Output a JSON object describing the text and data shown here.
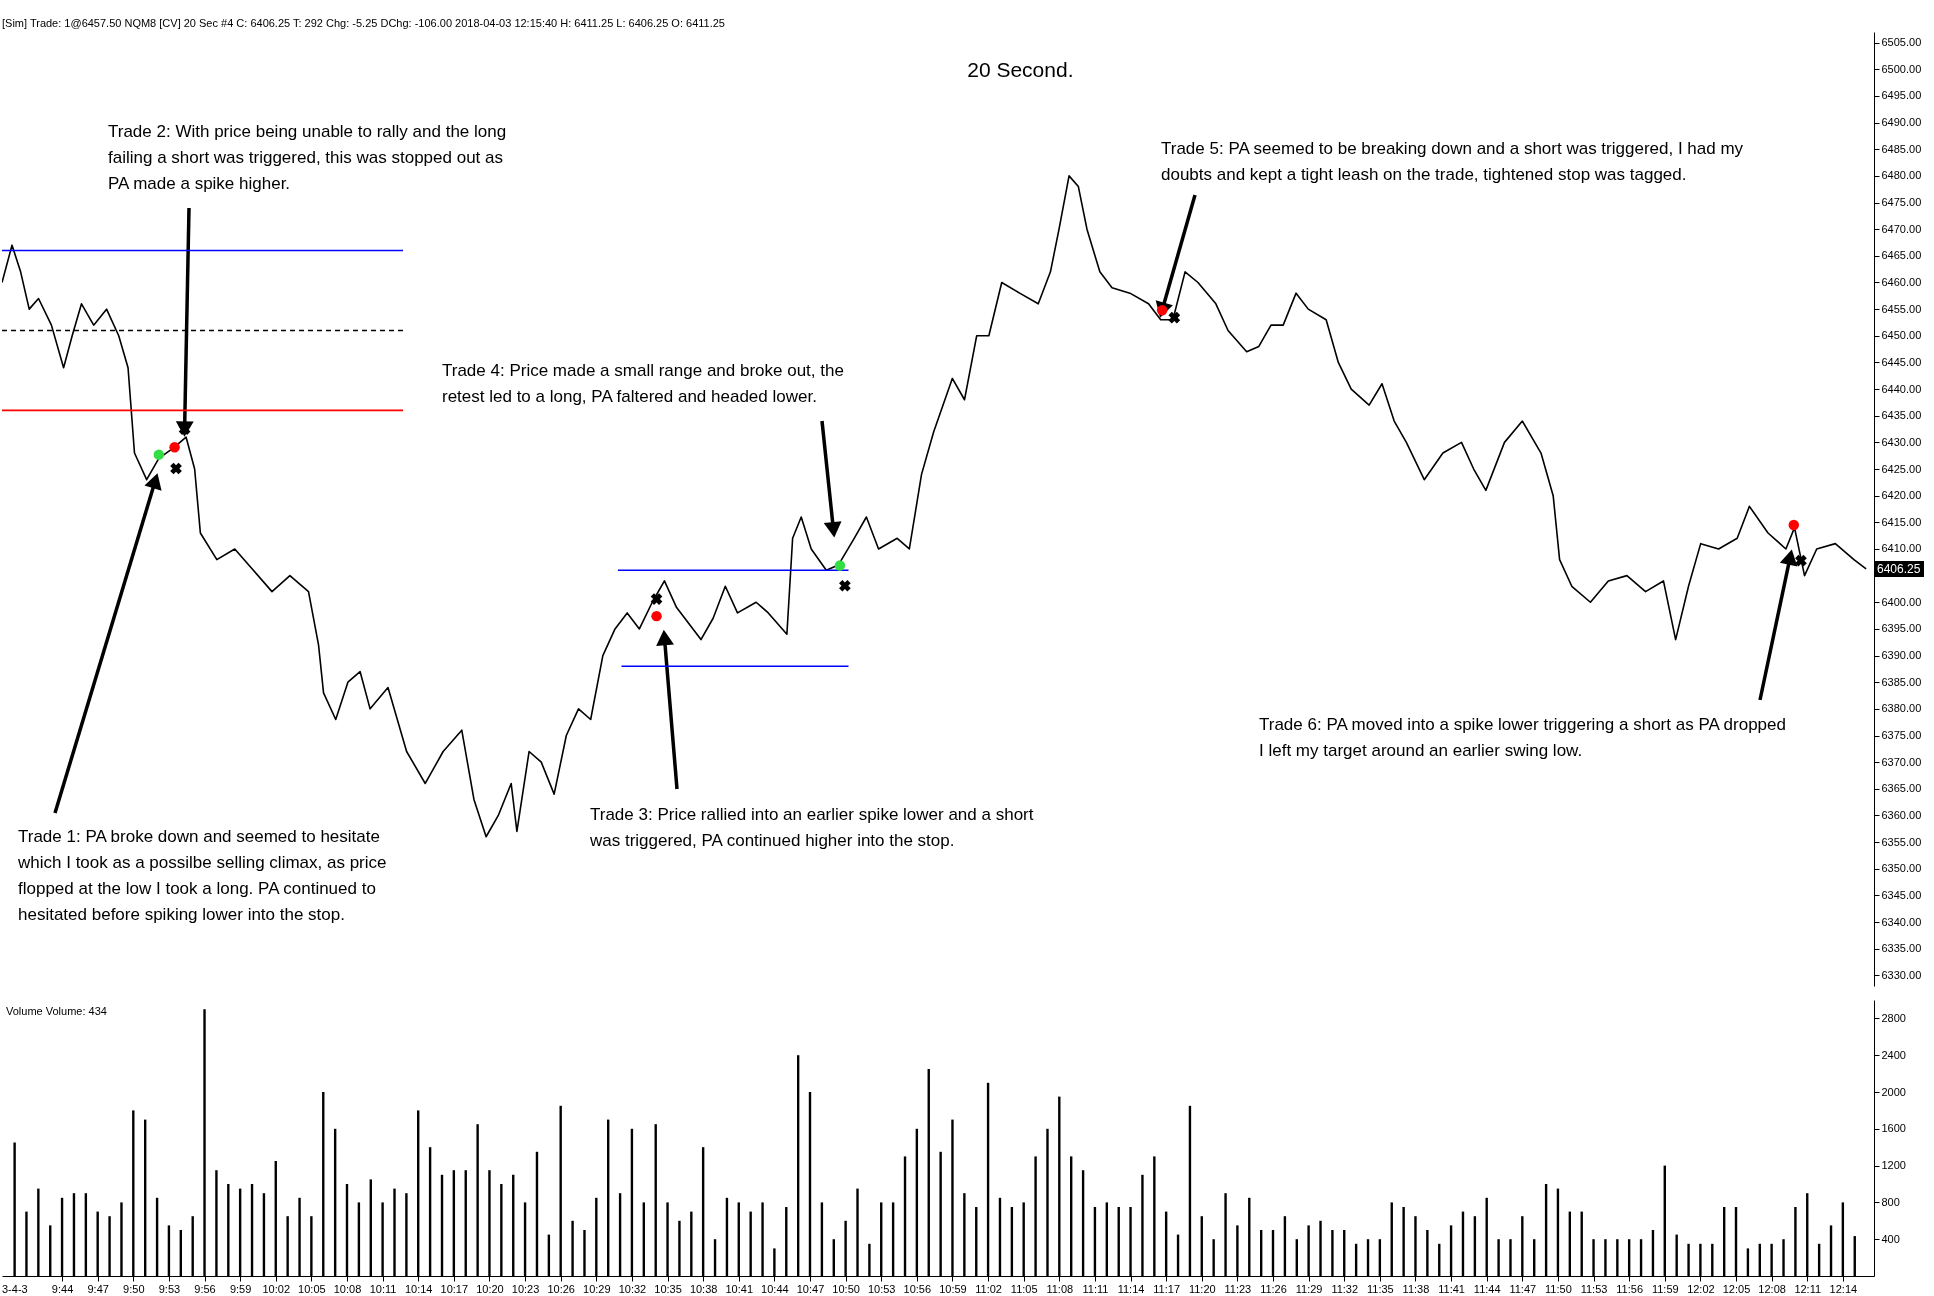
{
  "chart_data": [
    {
      "type": "line",
      "title": "20 Second.",
      "xlim": [
        9.656,
        12.27
      ],
      "ylim": [
        6328,
        6507
      ],
      "tick_labels": "y",
      "grid": false,
      "yticks": [
        {
          "value": 6330,
          "label": "6330.00"
        },
        {
          "value": 6335,
          "label": "6335.00"
        },
        {
          "value": 6340,
          "label": "6340.00"
        },
        {
          "value": 6345,
          "label": "6345.00"
        },
        {
          "value": 6350,
          "label": "6350.00"
        },
        {
          "value": 6355,
          "label": "6355.00"
        },
        {
          "value": 6360,
          "label": "6360.00"
        },
        {
          "value": 6365,
          "label": "6365.00"
        },
        {
          "value": 6370,
          "label": "6370.00"
        },
        {
          "value": 6375,
          "label": "6375.00"
        },
        {
          "value": 6380,
          "label": "6380.00"
        },
        {
          "value": 6385,
          "label": "6385.00"
        },
        {
          "value": 6390,
          "label": "6390.00"
        },
        {
          "value": 6395,
          "label": "6395.00"
        },
        {
          "value": 6400,
          "label": "6400.00"
        },
        {
          "value": 6405,
          "label": null
        },
        {
          "value": 6410,
          "label": "6410.00"
        },
        {
          "value": 6415,
          "label": "6415.00"
        },
        {
          "value": 6420,
          "label": "6420.00"
        },
        {
          "value": 6425,
          "label": "6425.00"
        },
        {
          "value": 6430,
          "label": "6430.00"
        },
        {
          "value": 6435,
          "label": "6435.00"
        },
        {
          "value": 6440,
          "label": "6440.00"
        },
        {
          "value": 6445,
          "label": "6445.00"
        },
        {
          "value": 6450,
          "label": "6450.00"
        },
        {
          "value": 6455,
          "label": "6455.00"
        },
        {
          "value": 6460,
          "label": "6460.00"
        },
        {
          "value": 6465,
          "label": "6465.00"
        },
        {
          "value": 6470,
          "label": "6470.00"
        },
        {
          "value": 6475,
          "label": "6475.00"
        },
        {
          "value": 6480,
          "label": "6480.00"
        },
        {
          "value": 6485,
          "label": "6485.00"
        },
        {
          "value": 6490,
          "label": "6490.00"
        },
        {
          "value": 6495,
          "label": "6495.00"
        },
        {
          "value": 6500,
          "label": "6500.00"
        },
        {
          "value": 6505,
          "label": "6505.00"
        }
      ],
      "series": [
        {
          "color": "#000000",
          "marker": "none",
          "line_style": "solid",
          "x": [
            9.656,
            9.67,
            9.682,
            9.694,
            9.707,
            9.725,
            9.742,
            9.754,
            9.767,
            9.784,
            9.802,
            9.819,
            9.832,
            9.841,
            9.858,
            9.875,
            9.896,
            9.913,
            9.925,
            9.933,
            9.956,
            9.981,
            10.007,
            10.033,
            10.058,
            10.084,
            10.098,
            10.105,
            10.122,
            10.139,
            10.156,
            10.17,
            10.195,
            10.221,
            10.247,
            10.272,
            10.298,
            10.315,
            10.332,
            10.349,
            10.367,
            10.375,
            10.392,
            10.409,
            10.427,
            10.444,
            10.461,
            10.478,
            10.495,
            10.512,
            10.529,
            10.546,
            10.564,
            10.581,
            10.598,
            10.615,
            10.632,
            10.649,
            10.666,
            10.683,
            10.709,
            10.726,
            10.752,
            10.76,
            10.772,
            10.786,
            10.807,
            10.824,
            10.846,
            10.863,
            10.88,
            10.906,
            10.923,
            10.94,
            10.957,
            10.983,
            11.0,
            11.017,
            11.034,
            11.052,
            11.077,
            11.103,
            11.12,
            11.132,
            11.146,
            11.159,
            11.171,
            11.189,
            11.206,
            11.231,
            11.257,
            11.274,
            11.291,
            11.308,
            11.326,
            11.351,
            11.368,
            11.394,
            11.411,
            11.428,
            11.445,
            11.463,
            11.48,
            11.505,
            11.522,
            11.54,
            11.565,
            11.583,
            11.6,
            11.617,
            11.642,
            11.668,
            11.694,
            11.711,
            11.728,
            11.754,
            11.779,
            11.805,
            11.822,
            11.831,
            11.848,
            11.874,
            11.899,
            11.925,
            11.951,
            11.976,
            11.993,
            12.011,
            12.028,
            12.053,
            12.079,
            12.096,
            12.122,
            12.147,
            12.159,
            12.173,
            12.19,
            12.216,
            12.242,
            12.259
          ],
          "values": [
            6460,
            6467,
            6462,
            6455,
            6457,
            6452,
            6444,
            6450,
            6456,
            6452,
            6455,
            6450,
            6444,
            6428,
            6423,
            6427,
            6429,
            6431,
            6425,
            6413,
            6408,
            6410,
            6406,
            6402,
            6405,
            6402,
            6392,
            6383,
            6378,
            6385,
            6387,
            6380,
            6384,
            6372,
            6366,
            6372,
            6376,
            6363,
            6356,
            6360,
            6366,
            6357,
            6372,
            6370,
            6364,
            6375,
            6380,
            6378,
            6390,
            6395,
            6398,
            6395,
            6400,
            6404,
            6399,
            6396,
            6393,
            6397,
            6403,
            6398,
            6400,
            6398,
            6394,
            6412,
            6416,
            6410,
            6406,
            6407,
            6412,
            6416,
            6410,
            6412,
            6410,
            6424,
            6432,
            6442,
            6438,
            6450,
            6450,
            6460,
            6458,
            6456,
            6462,
            6470,
            6480,
            6478,
            6470,
            6462,
            6459,
            6458,
            6456,
            6453,
            6453,
            6462,
            6460,
            6456,
            6451,
            6447,
            6448,
            6452,
            6452,
            6458,
            6455,
            6453,
            6445,
            6440,
            6437,
            6441,
            6434,
            6430,
            6423,
            6428,
            6430,
            6425,
            6421,
            6430,
            6434,
            6428,
            6420,
            6408,
            6403,
            6400,
            6404,
            6405,
            6402,
            6404,
            6393,
            6403,
            6411,
            6410,
            6412,
            6418,
            6413,
            6410,
            6414,
            6405,
            6410,
            6411,
            6408,
            6406.25
          ]
        },
        {
          "type": "line",
          "color": "#0000ff",
          "line_style": "solid",
          "x": [
            9.656,
            10.216
          ],
          "values": [
            6466,
            6466
          ]
        },
        {
          "type": "line",
          "color": "#000000",
          "line_style": "dashed",
          "x": [
            9.656,
            10.216
          ],
          "values": [
            6451,
            6451
          ]
        },
        {
          "type": "line",
          "color": "#ff0000",
          "line_style": "solid",
          "x": [
            9.656,
            10.216
          ],
          "values": [
            6436,
            6436
          ]
        },
        {
          "type": "line",
          "color": "#0000ff",
          "line_style": "solid",
          "x": [
            10.516,
            10.838
          ],
          "values": [
            6406,
            6406
          ]
        },
        {
          "type": "line",
          "color": "#0000ff",
          "line_style": "solid",
          "x": [
            10.521,
            10.838
          ],
          "values": [
            6388,
            6388
          ]
        },
        {
          "type": "scatter",
          "color": "#33dd44",
          "marker": "circle",
          "x": [
            9.875,
            10.826
          ],
          "values": [
            6427.7,
            6406.9
          ]
        },
        {
          "type": "scatter",
          "color": "#ff0000",
          "marker": "circle",
          "x": [
            9.897,
            10.57,
            11.276,
            12.158
          ],
          "values": [
            6429.1,
            6397.4,
            6454.8,
            6414.5
          ]
        },
        {
          "type": "scatter",
          "color": "#000000",
          "marker": "cross",
          "x": [
            9.911,
            9.899,
            10.57,
            10.833,
            11.293,
            12.168
          ],
          "values": [
            6432.5,
            6425.1,
            6400.6,
            6403.1,
            6453.4,
            6407.8
          ]
        }
      ],
      "annotations": [
        "[Sim]  Trade: 1@6457.50  NQM8 [CV]  20 Sec   #4  C: 6406.25  T: 292  Chg: -5.25  DChg: -106.00  2018-04-03 12:15:40  H: 6411.25  L: 6406.25  O: 6411.25",
        {
          "text": "Trade 1:  PA broke down and seemed to hesitate which I took as a possilbe selling climax, as price flopped at the low I took a long.  PA continued to hesitated before spiking lower into the stop.",
          "x": 9.87,
          "y": 6422.8
        },
        {
          "text": "Trade 2:  With price being unable to rally and the long failing a short was triggered, this was stopped out as PA made a spike higher.",
          "x": 9.911,
          "y": 6432.5
        },
        {
          "text": "Trade 3:  Price rallied into an earlier spike lower and a short was triggered, PA continued higher into the stop.",
          "x": 10.581,
          "y": 6393.4
        },
        {
          "text": "Trade 4:  Price made a small range and broke out, the retest led to a long, PA faltered and headed lower.",
          "x": 10.817,
          "y": 6413.6
        },
        {
          "text": "Trade 5:  PA seemed to be breaking down and a short was triggered, I had my doubts and kept a tight leash on the trade, tightened stop was tagged.",
          "x": 11.276,
          "y": 6454.8
        },
        {
          "text": "Trade 6:  PA moved into a spike lower triggering a short as PA dropped I left my target around an earlier swing low.",
          "x": 12.153,
          "y": 6408.5
        },
        "6406.25"
      ]
    },
    {
      "type": "bar",
      "color": "#000000",
      "xlim": [
        9.656,
        12.27
      ],
      "ylim": [
        0,
        3000
      ],
      "grid": false,
      "yticks": [
        400,
        800,
        1200,
        1600,
        2000,
        2400,
        2800
      ],
      "xticks": [
        {
          "value": 9.7333,
          "label": "9:44"
        },
        {
          "value": 9.7833,
          "label": "9:47"
        },
        {
          "value": 9.8333,
          "label": "9:50"
        },
        {
          "value": 9.8833,
          "label": "9:53"
        },
        {
          "value": 9.9333,
          "label": "9:56"
        },
        {
          "value": 9.9833,
          "label": "9:59"
        },
        {
          "value": 10.0333,
          "label": "10:02"
        },
        {
          "value": 10.0833,
          "label": "10:05"
        },
        {
          "value": 10.1333,
          "label": "10:08"
        },
        {
          "value": 10.1833,
          "label": "10:11"
        },
        {
          "value": 10.2333,
          "label": "10:14"
        },
        {
          "value": 10.2833,
          "label": "10:17"
        },
        {
          "value": 10.3333,
          "label": "10:20"
        },
        {
          "value": 10.3833,
          "label": "10:23"
        },
        {
          "value": 10.4333,
          "label": "10:26"
        },
        {
          "value": 10.4833,
          "label": "10:29"
        },
        {
          "value": 10.5333,
          "label": "10:32"
        },
        {
          "value": 10.5833,
          "label": "10:35"
        },
        {
          "value": 10.6333,
          "label": "10:38"
        },
        {
          "value": 10.6833,
          "label": "10:41"
        },
        {
          "value": 10.7333,
          "label": "10:44"
        },
        {
          "value": 10.7833,
          "label": "10:47"
        },
        {
          "value": 10.8333,
          "label": "10:50"
        },
        {
          "value": 10.8833,
          "label": "10:53"
        },
        {
          "value": 10.9333,
          "label": "10:56"
        },
        {
          "value": 10.9833,
          "label": "10:59"
        },
        {
          "value": 11.0333,
          "label": "11:02"
        },
        {
          "value": 11.0833,
          "label": "11:05"
        },
        {
          "value": 11.1333,
          "label": "11:08"
        },
        {
          "value": 11.1833,
          "label": "11:11"
        },
        {
          "value": 11.2333,
          "label": "11:14"
        },
        {
          "value": 11.2833,
          "label": "11:17"
        },
        {
          "value": 11.3333,
          "label": "11:20"
        },
        {
          "value": 11.3833,
          "label": "11:23"
        },
        {
          "value": 11.4333,
          "label": "11:26"
        },
        {
          "value": 11.4833,
          "label": "11:29"
        },
        {
          "value": 11.5333,
          "label": "11:32"
        },
        {
          "value": 11.5833,
          "label": "11:35"
        },
        {
          "value": 11.6333,
          "label": "11:38"
        },
        {
          "value": 11.6833,
          "label": "11:41"
        },
        {
          "value": 11.7333,
          "label": "11:44"
        },
        {
          "value": 11.7833,
          "label": "11:47"
        },
        {
          "value": 11.8333,
          "label": "11:50"
        },
        {
          "value": 11.8833,
          "label": "11:53"
        },
        {
          "value": 11.9333,
          "label": "11:56"
        },
        {
          "value": 11.9833,
          "label": "11:59"
        },
        {
          "value": 12.0333,
          "label": "12:02"
        },
        {
          "value": 12.0833,
          "label": "12:05"
        },
        {
          "value": 12.1333,
          "label": "12:08"
        },
        {
          "value": 12.1833,
          "label": "12:11"
        },
        {
          "value": 12.2333,
          "label": "12:14"
        }
      ],
      "x": [
        9.6667,
        9.6833,
        9.7,
        9.7167,
        9.7333,
        9.75,
        9.7667,
        9.7833,
        9.8,
        9.8167,
        9.8333,
        9.85,
        9.8667,
        9.8833,
        9.9,
        9.9167,
        9.9333,
        9.95,
        9.9667,
        9.9833,
        10.0,
        10.0167,
        10.0333,
        10.05,
        10.0667,
        10.0833,
        10.1,
        10.1167,
        10.1333,
        10.15,
        10.1667,
        10.1833,
        10.2,
        10.2167,
        10.2333,
        10.25,
        10.2667,
        10.2833,
        10.3,
        10.3167,
        10.3333,
        10.35,
        10.3667,
        10.3833,
        10.4,
        10.4167,
        10.4333,
        10.45,
        10.4667,
        10.4833,
        10.5,
        10.5167,
        10.5333,
        10.55,
        10.5667,
        10.5833,
        10.6,
        10.6167,
        10.6333,
        10.65,
        10.6667,
        10.6833,
        10.7,
        10.7167,
        10.7333,
        10.75,
        10.7667,
        10.7833,
        10.8,
        10.8167,
        10.8333,
        10.85,
        10.8667,
        10.8833,
        10.9,
        10.9167,
        10.9333,
        10.95,
        10.9667,
        10.9833,
        11.0,
        11.0167,
        11.0333,
        11.05,
        11.0667,
        11.0833,
        11.1,
        11.1167,
        11.1333,
        11.15,
        11.1667,
        11.1833,
        11.2,
        11.2167,
        11.2333,
        11.25,
        11.2667,
        11.2833,
        11.3,
        11.3167,
        11.3333,
        11.35,
        11.3667,
        11.3833,
        11.4,
        11.4167,
        11.4333,
        11.45,
        11.4667,
        11.4833,
        11.5,
        11.5167,
        11.5333,
        11.55,
        11.5667,
        11.5833,
        11.6,
        11.6167,
        11.6333,
        11.65,
        11.6667,
        11.6833,
        11.7,
        11.7167,
        11.7333,
        11.75,
        11.7667,
        11.7833,
        11.8,
        11.8167,
        11.8333,
        11.85,
        11.8667,
        11.8833,
        11.9,
        11.9167,
        11.9333,
        11.95,
        11.9667,
        11.9833,
        12.0,
        12.0167,
        12.0333,
        12.05,
        12.0667,
        12.0833,
        12.1,
        12.1167,
        12.1333,
        12.15,
        12.1667,
        12.1833,
        12.2,
        12.2167,
        12.2333,
        12.25
      ],
      "values": [
        1450,
        700,
        950,
        550,
        850,
        900,
        900,
        700,
        650,
        800,
        1800,
        1700,
        850,
        550,
        500,
        650,
        2900,
        1150,
        1000,
        950,
        1000,
        900,
        1250,
        650,
        850,
        650,
        2000,
        1600,
        1000,
        800,
        1050,
        800,
        950,
        900,
        1800,
        1400,
        1100,
        1150,
        1150,
        1650,
        1150,
        1000,
        1100,
        800,
        1350,
        450,
        1850,
        600,
        500,
        850,
        1700,
        900,
        1600,
        800,
        1650,
        800,
        600,
        700,
        1400,
        400,
        850,
        800,
        700,
        800,
        300,
        750,
        2400,
        2000,
        800,
        400,
        600,
        950,
        350,
        800,
        800,
        1300,
        1600,
        2250,
        1350,
        1700,
        900,
        750,
        2100,
        850,
        750,
        800,
        1300,
        1600,
        1950,
        1300,
        1150,
        750,
        800,
        750,
        750,
        1100,
        1300,
        700,
        450,
        1850,
        650,
        400,
        900,
        550,
        850,
        500,
        500,
        650,
        400,
        550,
        600,
        500,
        500,
        350,
        400,
        400,
        800,
        750,
        650,
        500,
        350,
        550,
        700,
        650,
        850,
        400,
        400,
        650,
        400,
        1000,
        950,
        700,
        700,
        400,
        400,
        400,
        400,
        400,
        500,
        1200,
        450,
        350,
        350,
        350,
        750,
        750,
        300,
        350,
        350,
        400,
        750,
        900,
        350,
        550,
        800,
        434
      ],
      "annotations": [
        "Volume  Volume: 434",
        "3-4-3"
      ]
    }
  ]
}
